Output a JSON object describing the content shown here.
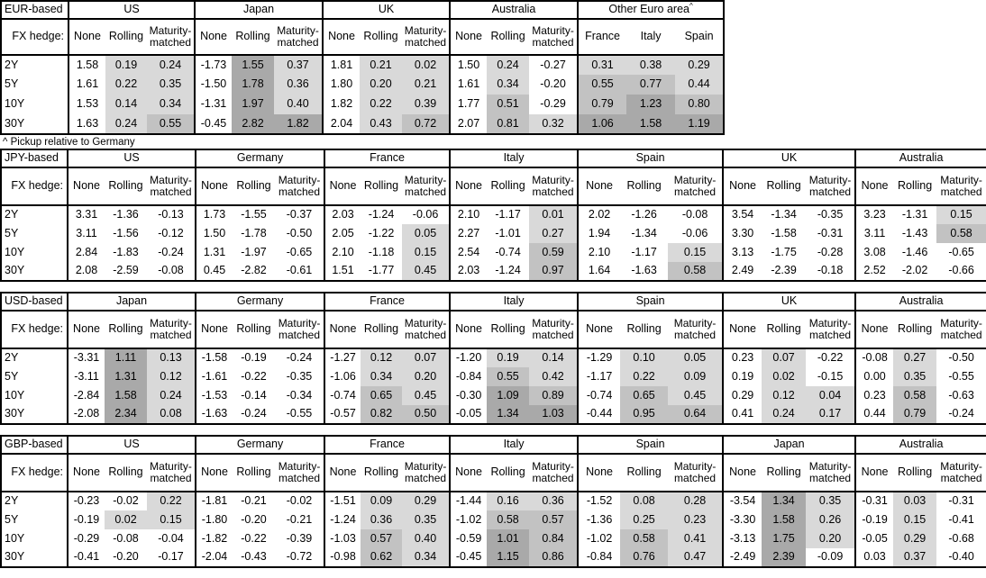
{
  "chart_data": {
    "type": "heatmap",
    "title": "",
    "footnote": "^ Pickup relative to Germany",
    "fx_hedge_label": "FX hedge:",
    "fx_cols": [
      "None",
      "Rolling",
      "Maturity-matched"
    ],
    "tenors": [
      "2Y",
      "5Y",
      "10Y",
      "30Y"
    ],
    "shading": {
      "rule": "Rolling/Maturity-matched and Other-Euro-area cells shaded by value: <0 white, 0 to <0.5 light, 0.5 to <1 medium, >=1 dark; None columns unshaded",
      "light": "#d9d9d9",
      "medium": "#c2c2c2",
      "dark": "#a9a9a9"
    },
    "tables": [
      {
        "id": "eur",
        "label": "EUR-based",
        "groups": [
          {
            "name": "US",
            "rows": [
              [
                1.58,
                0.19,
                0.24
              ],
              [
                1.61,
                0.22,
                0.35
              ],
              [
                1.53,
                0.14,
                0.34
              ],
              [
                1.63,
                0.24,
                0.55
              ]
            ]
          },
          {
            "name": "Japan",
            "rows": [
              [
                -1.73,
                1.55,
                0.37
              ],
              [
                -1.5,
                1.78,
                0.36
              ],
              [
                -1.31,
                1.97,
                0.4
              ],
              [
                -0.45,
                2.82,
                1.82
              ]
            ]
          },
          {
            "name": "UK",
            "rows": [
              [
                1.81,
                0.21,
                0.02
              ],
              [
                1.8,
                0.2,
                0.21
              ],
              [
                1.82,
                0.22,
                0.39
              ],
              [
                2.04,
                0.43,
                0.72
              ]
            ]
          },
          {
            "name": "Australia",
            "rows": [
              [
                1.5,
                0.24,
                -0.27
              ],
              [
                1.61,
                0.34,
                -0.2
              ],
              [
                1.77,
                0.51,
                -0.29
              ],
              [
                2.07,
                0.81,
                0.32
              ]
            ]
          },
          {
            "name": "Other Euro area",
            "sup": "^",
            "cols": [
              "France",
              "Italy",
              "Spain"
            ],
            "rows": [
              [
                0.31,
                0.38,
                0.29
              ],
              [
                0.55,
                0.77,
                0.44
              ],
              [
                0.79,
                1.23,
                0.8
              ],
              [
                1.06,
                1.58,
                1.19
              ]
            ]
          }
        ]
      },
      {
        "id": "jpy",
        "label": "JPY-based",
        "groups": [
          {
            "name": "US",
            "rows": [
              [
                3.31,
                -1.36,
                -0.13
              ],
              [
                3.11,
                -1.56,
                -0.12
              ],
              [
                2.84,
                -1.83,
                -0.24
              ],
              [
                2.08,
                -2.59,
                -0.08
              ]
            ]
          },
          {
            "name": "Germany",
            "rows": [
              [
                1.73,
                -1.55,
                -0.37
              ],
              [
                1.5,
                -1.78,
                -0.5
              ],
              [
                1.31,
                -1.97,
                -0.65
              ],
              [
                0.45,
                -2.82,
                -0.61
              ]
            ]
          },
          {
            "name": "France",
            "rows": [
              [
                2.03,
                -1.24,
                -0.06
              ],
              [
                2.05,
                -1.22,
                0.05
              ],
              [
                2.1,
                -1.18,
                0.15
              ],
              [
                1.51,
                -1.77,
                0.45
              ]
            ]
          },
          {
            "name": "Italy",
            "rows": [
              [
                2.1,
                -1.17,
                0.01
              ],
              [
                2.27,
                -1.01,
                0.27
              ],
              [
                2.54,
                -0.74,
                0.59
              ],
              [
                2.03,
                -1.24,
                0.97
              ]
            ]
          },
          {
            "name": "Spain",
            "rows": [
              [
                2.02,
                -1.26,
                -0.08
              ],
              [
                1.94,
                -1.34,
                -0.06
              ],
              [
                2.1,
                -1.17,
                0.15
              ],
              [
                1.64,
                -1.63,
                0.58
              ]
            ]
          },
          {
            "name": "UK",
            "rows": [
              [
                3.54,
                -1.34,
                -0.35
              ],
              [
                3.3,
                -1.58,
                -0.31
              ],
              [
                3.13,
                -1.75,
                -0.28
              ],
              [
                2.49,
                -2.39,
                -0.18
              ]
            ]
          },
          {
            "name": "Australia",
            "rows": [
              [
                3.23,
                -1.31,
                0.15
              ],
              [
                3.11,
                -1.43,
                0.58
              ],
              [
                3.08,
                -1.46,
                -0.65
              ],
              [
                2.52,
                -2.02,
                -0.66
              ]
            ]
          }
        ]
      },
      {
        "id": "usd",
        "label": "USD-based",
        "groups": [
          {
            "name": "Japan",
            "rows": [
              [
                -3.31,
                1.11,
                0.13
              ],
              [
                -3.11,
                1.31,
                0.12
              ],
              [
                -2.84,
                1.58,
                0.24
              ],
              [
                -2.08,
                2.34,
                0.08
              ]
            ]
          },
          {
            "name": "Germany",
            "rows": [
              [
                -1.58,
                -0.19,
                -0.24
              ],
              [
                -1.61,
                -0.22,
                -0.35
              ],
              [
                -1.53,
                -0.14,
                -0.34
              ],
              [
                -1.63,
                -0.24,
                -0.55
              ]
            ]
          },
          {
            "name": "France",
            "rows": [
              [
                -1.27,
                0.12,
                0.07
              ],
              [
                -1.06,
                0.34,
                0.2
              ],
              [
                -0.74,
                0.65,
                0.45
              ],
              [
                -0.57,
                0.82,
                0.5
              ]
            ]
          },
          {
            "name": "Italy",
            "rows": [
              [
                -1.2,
                0.19,
                0.14
              ],
              [
                -0.84,
                0.55,
                0.42
              ],
              [
                -0.3,
                1.09,
                0.89
              ],
              [
                -0.05,
                1.34,
                1.03
              ]
            ]
          },
          {
            "name": "Spain",
            "rows": [
              [
                -1.29,
                0.1,
                0.05
              ],
              [
                -1.17,
                0.22,
                0.09
              ],
              [
                -0.74,
                0.65,
                0.45
              ],
              [
                -0.44,
                0.95,
                0.64
              ]
            ]
          },
          {
            "name": "UK",
            "rows": [
              [
                0.23,
                0.07,
                -0.22
              ],
              [
                0.19,
                0.02,
                -0.15
              ],
              [
                0.29,
                0.12,
                0.04
              ],
              [
                0.41,
                0.24,
                0.17
              ]
            ]
          },
          {
            "name": "Australia",
            "rows": [
              [
                -0.08,
                0.27,
                -0.5
              ],
              [
                0.0,
                0.35,
                -0.55
              ],
              [
                0.23,
                0.58,
                -0.63
              ],
              [
                0.44,
                0.79,
                -0.24
              ]
            ]
          }
        ]
      },
      {
        "id": "gbp",
        "label": "GBP-based",
        "groups": [
          {
            "name": "US",
            "rows": [
              [
                -0.23,
                -0.02,
                0.22
              ],
              [
                -0.19,
                0.02,
                0.15
              ],
              [
                -0.29,
                -0.08,
                -0.04
              ],
              [
                -0.41,
                -0.2,
                -0.17
              ]
            ]
          },
          {
            "name": "Germany",
            "rows": [
              [
                -1.81,
                -0.21,
                -0.02
              ],
              [
                -1.8,
                -0.2,
                -0.21
              ],
              [
                -1.82,
                -0.22,
                -0.39
              ],
              [
                -2.04,
                -0.43,
                -0.72
              ]
            ]
          },
          {
            "name": "France",
            "rows": [
              [
                -1.51,
                0.09,
                0.29
              ],
              [
                -1.24,
                0.36,
                0.35
              ],
              [
                -1.03,
                0.57,
                0.4
              ],
              [
                -0.98,
                0.62,
                0.34
              ]
            ]
          },
          {
            "name": "Italy",
            "rows": [
              [
                -1.44,
                0.16,
                0.36
              ],
              [
                -1.02,
                0.58,
                0.57
              ],
              [
                -0.59,
                1.01,
                0.84
              ],
              [
                -0.45,
                1.15,
                0.86
              ]
            ]
          },
          {
            "name": "Spain",
            "rows": [
              [
                -1.52,
                0.08,
                0.28
              ],
              [
                -1.36,
                0.25,
                0.23
              ],
              [
                -1.02,
                0.58,
                0.41
              ],
              [
                -0.84,
                0.76,
                0.47
              ]
            ]
          },
          {
            "name": "Japan",
            "rows": [
              [
                -3.54,
                1.34,
                0.35
              ],
              [
                -3.3,
                1.58,
                0.26
              ],
              [
                -3.13,
                1.75,
                0.2
              ],
              [
                -2.49,
                2.39,
                -0.09
              ]
            ]
          },
          {
            "name": "Australia",
            "rows": [
              [
                -0.31,
                0.03,
                -0.31
              ],
              [
                -0.19,
                0.15,
                -0.41
              ],
              [
                -0.05,
                0.29,
                -0.68
              ],
              [
                0.03,
                0.37,
                -0.4
              ]
            ]
          }
        ]
      }
    ]
  }
}
